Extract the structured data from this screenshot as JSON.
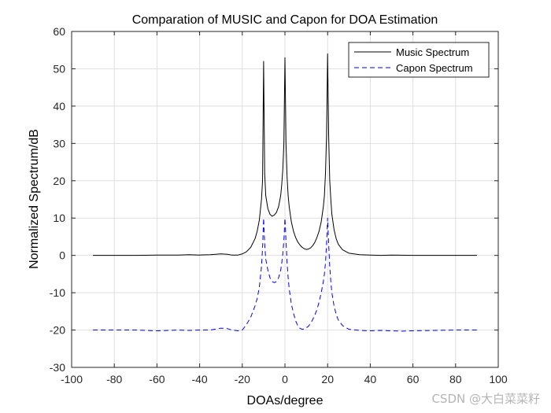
{
  "chart_data": {
    "type": "line",
    "title": "Comparation of MUSIC and Capon for DOA Estimation",
    "xlabel": "DOAs/degree",
    "ylabel": "Normalized Spectrum/dB",
    "xlim": [
      -100,
      100
    ],
    "ylim": [
      -30,
      60
    ],
    "xticks": [
      -100,
      -80,
      -60,
      -40,
      -20,
      0,
      20,
      40,
      60,
      80,
      100
    ],
    "yticks": [
      -30,
      -20,
      -10,
      0,
      10,
      20,
      30,
      40,
      50,
      60
    ],
    "grid": true,
    "legend_position": "top-right",
    "series": [
      {
        "name": "Music Spectrum",
        "color": "#000000",
        "style": "solid",
        "x": [
          -90,
          -80,
          -70,
          -60,
          -50,
          -45,
          -40,
          -35,
          -30,
          -27,
          -25,
          -22,
          -20,
          -18,
          -16,
          -14,
          -13,
          -12,
          -11,
          -10.5,
          -10,
          -9.5,
          -9,
          -8,
          -7,
          -6,
          -5,
          -4,
          -3,
          -2,
          -1.5,
          -1,
          -0.5,
          0,
          0.5,
          1,
          1.5,
          2,
          3,
          4,
          5,
          6,
          7,
          8,
          9,
          10,
          11,
          12,
          13,
          14,
          15,
          16,
          17,
          18,
          18.5,
          19,
          19.5,
          20,
          20.5,
          21,
          21.5,
          22,
          23,
          24,
          25,
          27,
          30,
          35,
          40,
          45,
          50,
          60,
          70,
          80,
          90
        ],
        "y": [
          0,
          0,
          0,
          0.1,
          0.1,
          0.2,
          0.1,
          0.2,
          0.4,
          0.3,
          0.1,
          0.1,
          0.4,
          1.0,
          2.2,
          4.5,
          6.5,
          9.5,
          15,
          20,
          52,
          22,
          16,
          12.5,
          11,
          10.5,
          10.8,
          11.5,
          13,
          16,
          19,
          23,
          30,
          53,
          30,
          21,
          16,
          13,
          9,
          6.5,
          4.8,
          3.6,
          2.8,
          2.2,
          1.8,
          1.6,
          1.7,
          2.0,
          2.6,
          3.5,
          4.8,
          6.5,
          9,
          13,
          16,
          22,
          32,
          54,
          32,
          20,
          15,
          11,
          7,
          4.5,
          3,
          1.5,
          0.6,
          0.2,
          0.1,
          0,
          0.1,
          0,
          0,
          0,
          0
        ]
      },
      {
        "name": "Capon Spectrum",
        "color": "#0000ff",
        "style": "dashed",
        "x": [
          -90,
          -80,
          -70,
          -60,
          -55,
          -50,
          -45,
          -40,
          -35,
          -30,
          -27,
          -25,
          -22,
          -20,
          -18,
          -16,
          -14,
          -13,
          -12,
          -11,
          -10.5,
          -10,
          -9.5,
          -9,
          -8,
          -7,
          -6,
          -5,
          -4,
          -3,
          -2,
          -1.5,
          -1,
          -0.5,
          0,
          0.5,
          1,
          1.5,
          2,
          3,
          4,
          5,
          6,
          7,
          8,
          9,
          10,
          11,
          12,
          13,
          14,
          15,
          16,
          17,
          18,
          18.5,
          19,
          19.5,
          20,
          20.5,
          21,
          21.5,
          22,
          23,
          24,
          25,
          27,
          30,
          35,
          40,
          45,
          50,
          55,
          60,
          70,
          80,
          90
        ],
        "y": [
          -20,
          -20,
          -20,
          -20.2,
          -20.1,
          -20,
          -20.1,
          -20,
          -20,
          -19.5,
          -19.6,
          -20,
          -20.2,
          -20,
          -18.5,
          -16.5,
          -13.5,
          -11.5,
          -8.5,
          -3,
          2,
          10,
          3,
          -1,
          -4,
          -6,
          -7,
          -7.3,
          -7,
          -6,
          -4,
          -2,
          0.5,
          4,
          10,
          4,
          -2,
          -6,
          -9,
          -13,
          -15.5,
          -17.5,
          -18.8,
          -19.5,
          -19.8,
          -19.7,
          -19.4,
          -19,
          -18.2,
          -17.2,
          -16,
          -14.5,
          -12.5,
          -10,
          -7,
          -5,
          -2,
          3,
          10,
          3,
          -3,
          -7,
          -10,
          -13.5,
          -15.8,
          -17.3,
          -18.8,
          -19.8,
          -20.1,
          -20.2,
          -20.1,
          -20.2,
          -20.3,
          -20.2,
          -20.1,
          -20,
          -20
        ]
      }
    ]
  },
  "watermark": "CSDN @大白菜菜籽"
}
